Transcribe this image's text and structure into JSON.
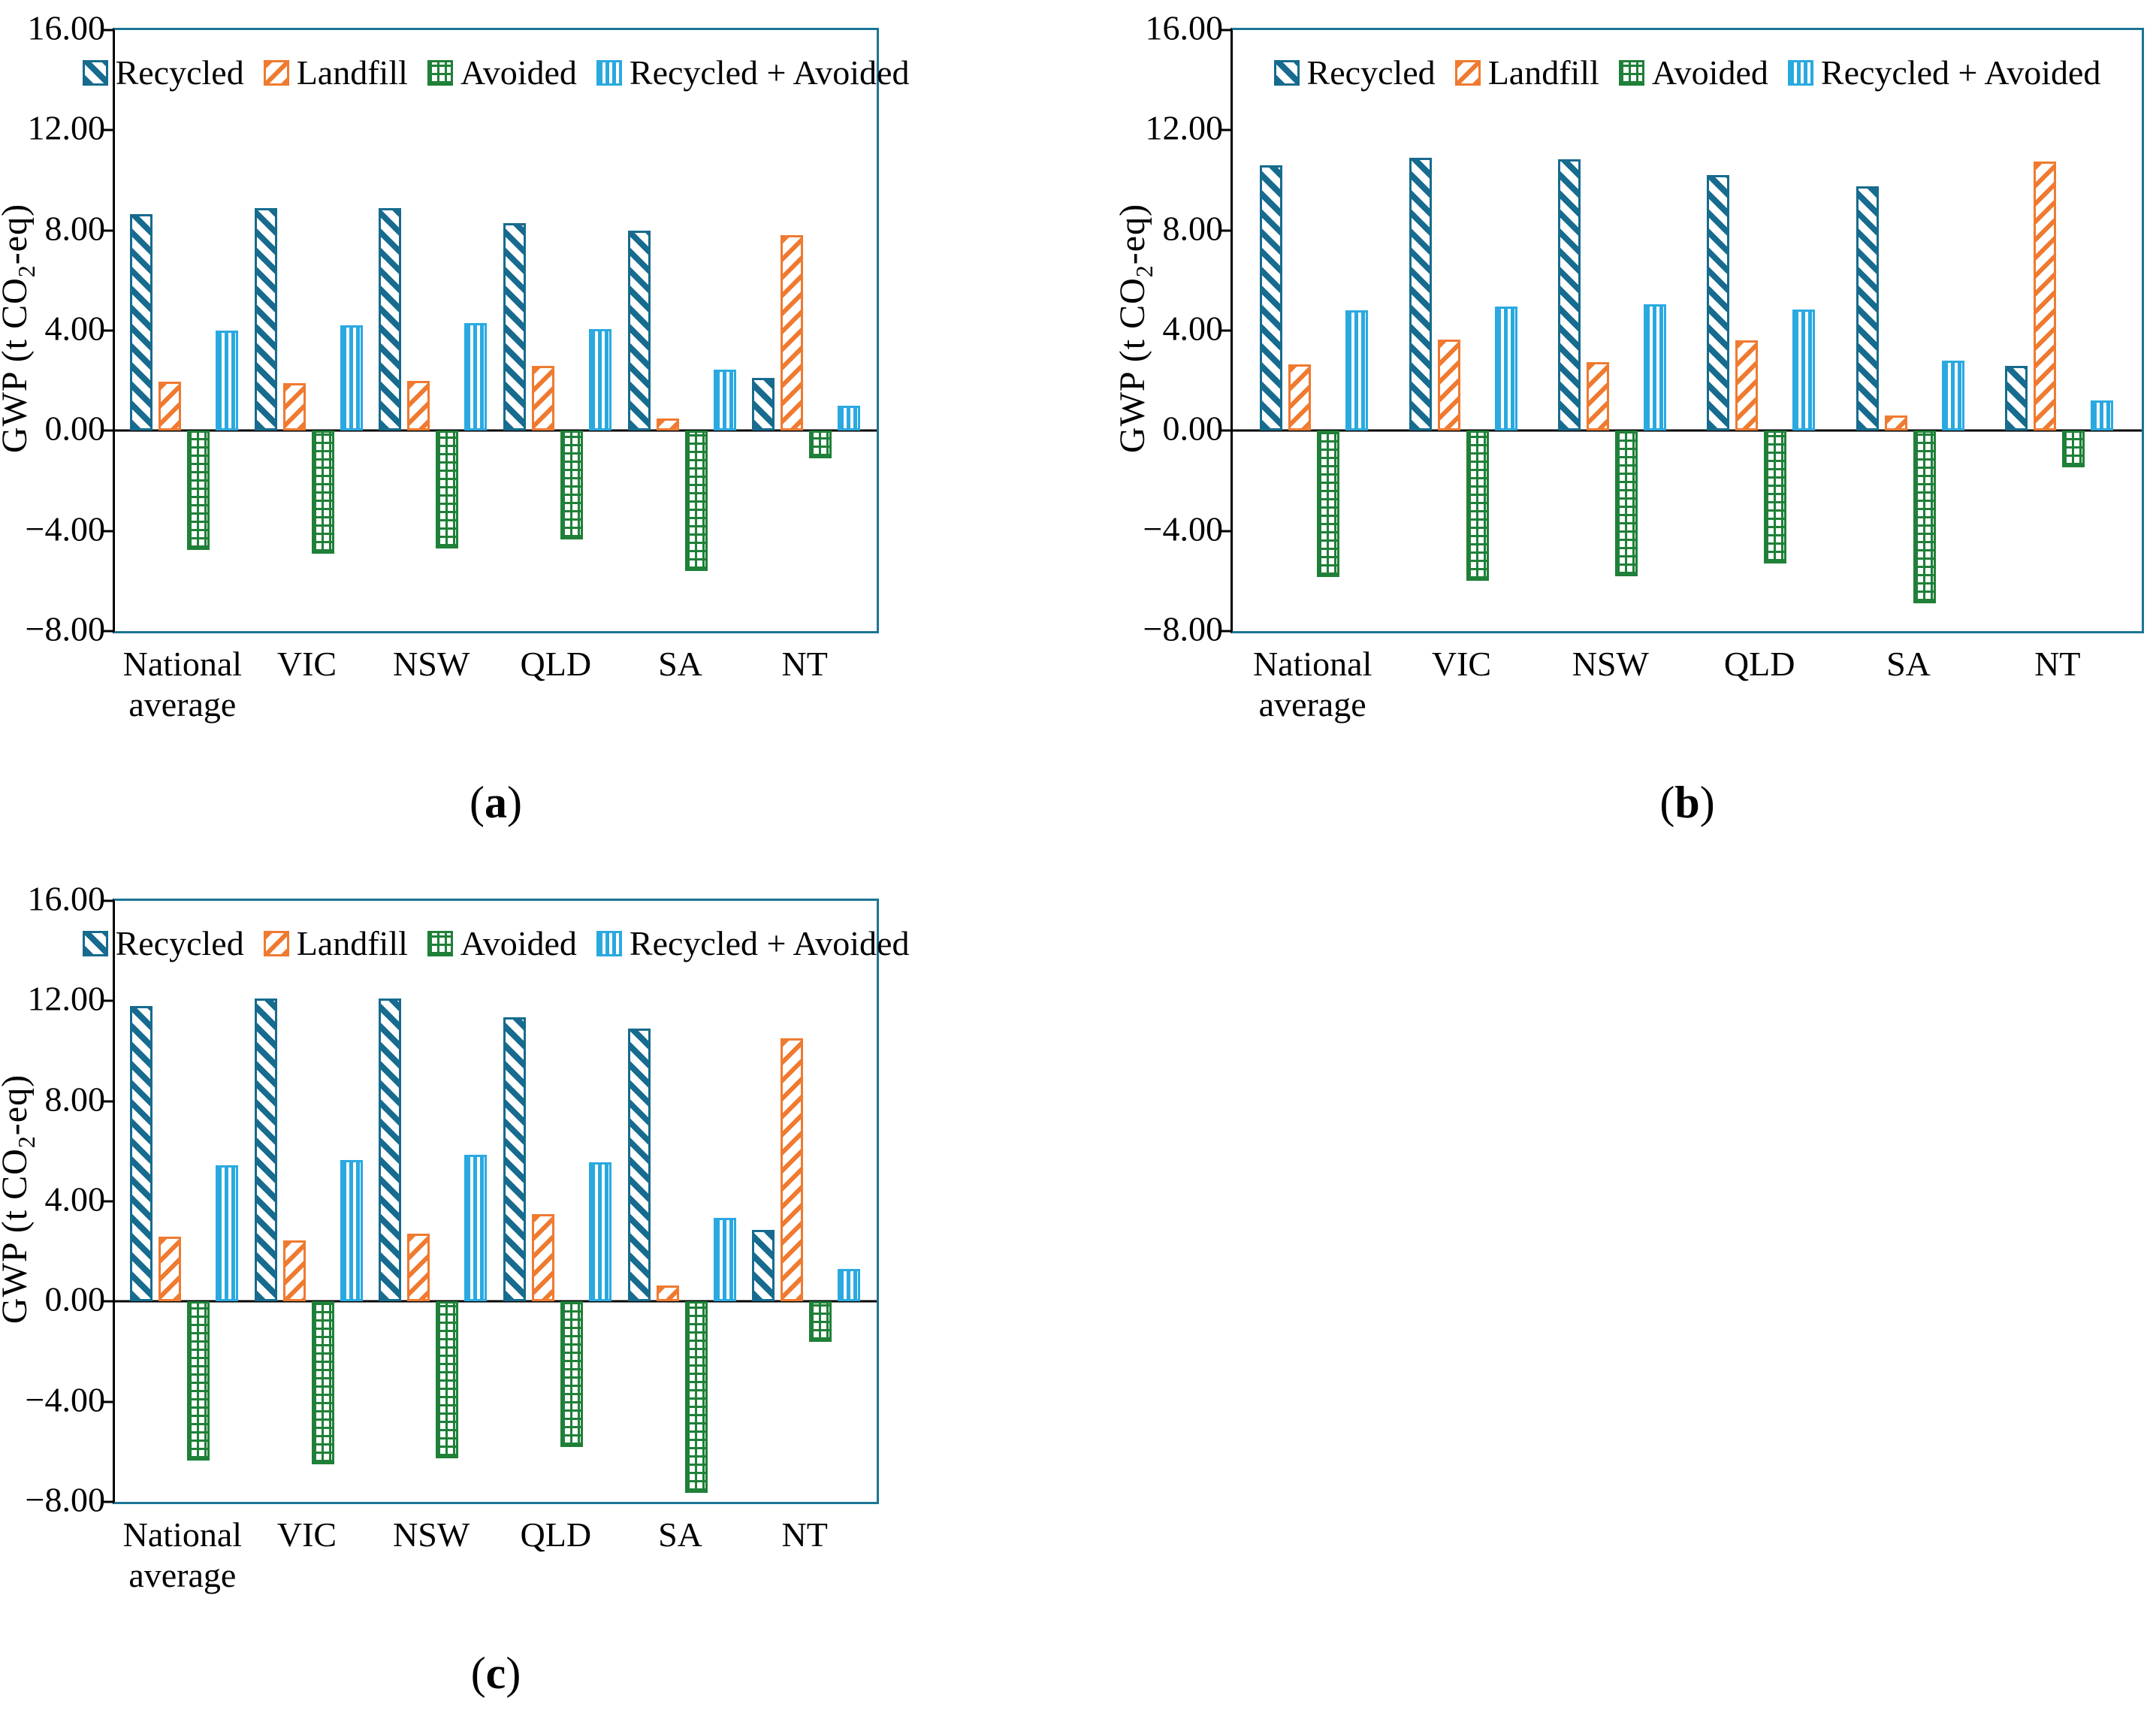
{
  "figure": {
    "caption_pre": "(",
    "caption_post": ")",
    "y_axis": {
      "label_parts": [
        "GWP (t CO",
        "2",
        "-eq)"
      ],
      "ticks": [
        "16.00",
        "12.00",
        "8.00",
        "4.00",
        "0.00",
        "−4.00",
        "−8.00"
      ],
      "tick_values": [
        16,
        12,
        8,
        4,
        0,
        -4,
        -8
      ],
      "max": 16,
      "min": -8
    },
    "colors": {
      "recycled": "#176b8e",
      "landfill": "#ef7a30",
      "avoided": "#1f8038",
      "recycled_avoided": "#2aa9e0",
      "frame": "#1b7596",
      "axis": "#000000",
      "text": "#000000"
    },
    "legend": [
      {
        "label": "Recycled",
        "key": "recycled"
      },
      {
        "label": "Landfill",
        "key": "landfill"
      },
      {
        "label": "Avoided",
        "key": "avoided"
      },
      {
        "label": "Recycled + Avoided",
        "key": "recycled_avoided"
      }
    ]
  },
  "chart_data": [
    {
      "id": "a",
      "type": "bar",
      "caption_letter": "a",
      "ylabel": "GWP (t CO2-eq)",
      "ylim": [
        -8,
        16
      ],
      "grid": false,
      "legend_position": "top-inside",
      "categories": [
        [
          "National",
          "average"
        ],
        [
          "VIC"
        ],
        [
          "NSW"
        ],
        [
          "QLD"
        ],
        [
          "SA"
        ],
        [
          "NT"
        ]
      ],
      "series": [
        {
          "name": "Recycled",
          "key": "recycled",
          "values": [
            8.65,
            8.9,
            8.9,
            8.3,
            8.0,
            2.1
          ]
        },
        {
          "name": "Landfill",
          "key": "landfill",
          "values": [
            1.95,
            1.9,
            2.0,
            2.6,
            0.5,
            7.8
          ]
        },
        {
          "name": "Avoided",
          "key": "avoided",
          "values": [
            -4.75,
            -4.9,
            -4.7,
            -4.35,
            -5.6,
            -1.1
          ]
        },
        {
          "name": "Recycled + Avoided",
          "key": "recycled_avoided",
          "values": [
            4.0,
            4.2,
            4.3,
            4.05,
            2.45,
            1.0
          ]
        }
      ]
    },
    {
      "id": "b",
      "type": "bar",
      "caption_letter": "b",
      "ylabel": "GWP (t CO2-eq)",
      "ylim": [
        -8,
        16
      ],
      "grid": false,
      "legend_position": "top-inside",
      "categories": [
        [
          "National",
          "average"
        ],
        [
          "VIC"
        ],
        [
          "NSW"
        ],
        [
          "QLD"
        ],
        [
          "SA"
        ],
        [
          "NT"
        ]
      ],
      "series": [
        {
          "name": "Recycled",
          "key": "recycled",
          "values": [
            10.6,
            10.9,
            10.85,
            10.2,
            9.75,
            2.6
          ]
        },
        {
          "name": "Landfill",
          "key": "landfill",
          "values": [
            2.65,
            3.65,
            2.75,
            3.6,
            0.6,
            10.75
          ]
        },
        {
          "name": "Avoided",
          "key": "avoided",
          "values": [
            -5.85,
            -6.0,
            -5.8,
            -5.3,
            -6.9,
            -1.45
          ]
        },
        {
          "name": "Recycled + Avoided",
          "key": "recycled_avoided",
          "values": [
            4.8,
            4.95,
            5.05,
            4.85,
            2.8,
            1.2
          ]
        }
      ]
    },
    {
      "id": "c",
      "type": "bar",
      "caption_letter": "c",
      "ylabel": "GWP (t CO2-eq)",
      "ylim": [
        -8,
        16
      ],
      "grid": false,
      "legend_position": "top-inside",
      "categories": [
        [
          "National",
          "average"
        ],
        [
          "VIC"
        ],
        [
          "NSW"
        ],
        [
          "QLD"
        ],
        [
          "SA"
        ],
        [
          "NT"
        ]
      ],
      "series": [
        {
          "name": "Recycled",
          "key": "recycled",
          "values": [
            11.8,
            12.1,
            12.1,
            11.35,
            10.9,
            2.85
          ]
        },
        {
          "name": "Landfill",
          "key": "landfill",
          "values": [
            2.6,
            2.45,
            2.7,
            3.5,
            0.65,
            10.5
          ]
        },
        {
          "name": "Avoided",
          "key": "avoided",
          "values": [
            -6.35,
            -6.5,
            -6.25,
            -5.8,
            -7.65,
            -1.6
          ]
        },
        {
          "name": "Recycled + Avoided",
          "key": "recycled_avoided",
          "values": [
            5.45,
            5.65,
            5.85,
            5.55,
            3.35,
            1.3
          ]
        }
      ]
    }
  ]
}
